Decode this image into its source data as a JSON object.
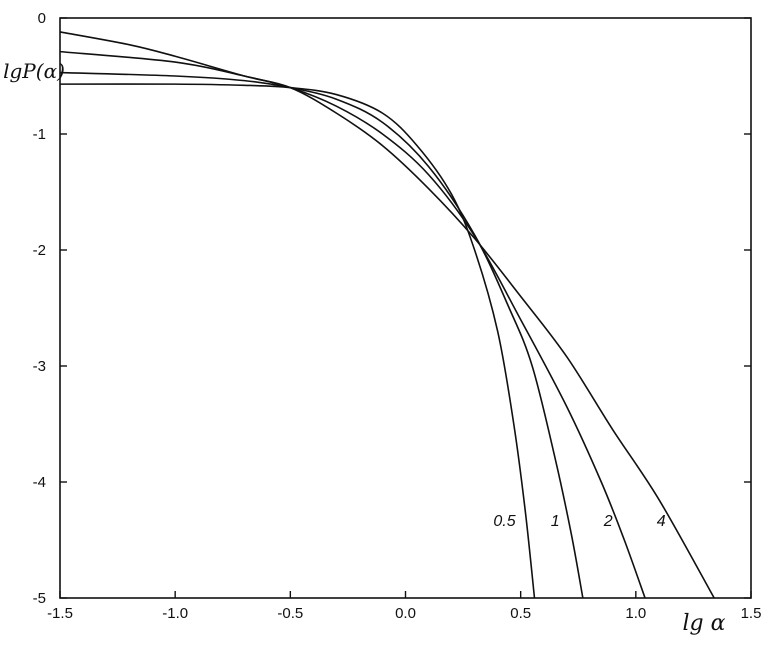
{
  "chart_data": {
    "type": "line",
    "xlabel": "lg α",
    "ylabel": "lgP(α)",
    "xlim": [
      -1.5,
      1.5
    ],
    "ylim": [
      -5,
      0
    ],
    "x_ticks": [
      -1.5,
      -1.0,
      -0.5,
      0.0,
      0.5,
      1.0,
      1.5
    ],
    "x_tick_labels": [
      "-1.5",
      "-1.0",
      "-0.5",
      "0.0",
      "0.5",
      "1.0",
      "1.5"
    ],
    "y_ticks": [
      0,
      -1,
      -2,
      -3,
      -4,
      -5
    ],
    "y_tick_labels": [
      "0",
      "-1",
      "-2",
      "-3",
      "-4",
      "-5"
    ],
    "grid": false,
    "legend": "none",
    "series": [
      {
        "name": "0.5",
        "x": [
          -1.5,
          -1.0,
          -0.7,
          -0.5,
          -0.3,
          -0.1,
          0.05,
          0.2,
          0.3,
          0.4,
          0.47,
          0.52,
          0.56
        ],
        "y": [
          -0.57,
          -0.57,
          -0.58,
          -0.6,
          -0.66,
          -0.82,
          -1.1,
          -1.52,
          -2.0,
          -2.7,
          -3.5,
          -4.25,
          -5.0
        ]
      },
      {
        "name": "1",
        "x": [
          -1.5,
          -1.0,
          -0.7,
          -0.5,
          -0.3,
          -0.1,
          0.1,
          0.3,
          0.45,
          0.55,
          0.65,
          0.72,
          0.77
        ],
        "y": [
          -0.47,
          -0.5,
          -0.54,
          -0.6,
          -0.7,
          -0.9,
          -1.28,
          -1.87,
          -2.5,
          -3.0,
          -3.8,
          -4.45,
          -5.0
        ]
      },
      {
        "name": "2",
        "x": [
          -1.5,
          -1.0,
          -0.7,
          -0.5,
          -0.3,
          -0.1,
          0.1,
          0.3,
          0.5,
          0.7,
          0.85,
          0.95,
          1.04
        ],
        "y": [
          -0.29,
          -0.38,
          -0.5,
          -0.6,
          -0.76,
          -1.0,
          -1.35,
          -1.88,
          -2.6,
          -3.35,
          -4.0,
          -4.5,
          -5.0
        ]
      },
      {
        "name": "4",
        "x": [
          -1.5,
          -1.2,
          -1.0,
          -0.7,
          -0.5,
          -0.3,
          -0.1,
          0.1,
          0.3,
          0.5,
          0.7,
          0.9,
          1.1,
          1.34
        ],
        "y": [
          -0.12,
          -0.23,
          -0.33,
          -0.5,
          -0.6,
          -0.82,
          -1.1,
          -1.47,
          -1.9,
          -2.4,
          -2.92,
          -3.55,
          -4.15,
          -5.0
        ]
      }
    ]
  }
}
